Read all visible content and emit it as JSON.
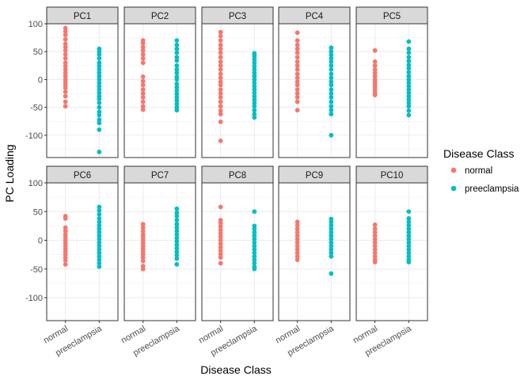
{
  "chart_data": {
    "type": "scatter",
    "xlabel": "Disease Class",
    "ylabel": "PC Loading",
    "categories": [
      "normal",
      "preeclampsia"
    ],
    "ylim": [
      -140,
      100
    ],
    "yticks": [
      100,
      50,
      0,
      -50,
      -100
    ],
    "grid": true,
    "legend": {
      "title": "Disease Class",
      "position": "right",
      "entries": [
        {
          "label": "normal",
          "color": "#F8766D"
        },
        {
          "label": "preeclampsia",
          "color": "#00BFC4"
        }
      ]
    },
    "panels": [
      {
        "label": "PC1",
        "normal": [
          92,
          86,
          80,
          72,
          64,
          58,
          52,
          45,
          38,
          30,
          24,
          18,
          12,
          6,
          0,
          -5,
          -10,
          -15,
          -22,
          -30,
          -40,
          -48
        ],
        "preeclampsia": [
          55,
          50,
          45,
          38,
          30,
          24,
          18,
          12,
          6,
          0,
          -6,
          -12,
          -18,
          -24,
          -30,
          -35,
          -42,
          -50,
          -58,
          -64,
          -72,
          -78,
          -90,
          -130
        ]
      },
      {
        "label": "PC2",
        "normal": [
          70,
          65,
          58,
          52,
          45,
          38,
          30,
          5,
          -3,
          -10,
          -18,
          -25,
          -32,
          -40,
          -48,
          -54
        ],
        "preeclampsia": [
          70,
          62,
          55,
          48,
          40,
          34,
          25,
          18,
          12,
          5,
          0,
          -8,
          -14,
          -20,
          -26,
          -32,
          -38,
          -44,
          -50,
          -55
        ]
      },
      {
        "label": "PC3",
        "normal": [
          85,
          78,
          70,
          62,
          55,
          48,
          40,
          32,
          25,
          18,
          10,
          3,
          -4,
          -10,
          -18,
          -25,
          -32,
          -40,
          -48,
          -56,
          -62,
          -76,
          -110
        ],
        "preeclampsia": [
          47,
          42,
          36,
          30,
          24,
          18,
          12,
          6,
          0,
          -6,
          -12,
          -18,
          -24,
          -30,
          -36,
          -42,
          -48,
          -55,
          -62,
          -68
        ]
      },
      {
        "label": "PC4",
        "normal": [
          84,
          70,
          62,
          55,
          48,
          40,
          32,
          25,
          18,
          10,
          3,
          -4,
          -10,
          -18,
          -25,
          -32,
          -40,
          -55
        ],
        "preeclampsia": [
          57,
          50,
          44,
          38,
          32,
          25,
          18,
          10,
          3,
          -4,
          -10,
          -18,
          -25,
          -32,
          -40,
          -48,
          -55,
          -62,
          -100
        ]
      },
      {
        "label": "PC5",
        "normal": [
          52,
          32,
          25,
          18,
          12,
          6,
          0,
          -5,
          -10,
          -15,
          -20,
          -25,
          -28
        ],
        "preeclampsia": [
          68,
          55,
          48,
          40,
          33,
          26,
          20,
          13,
          6,
          0,
          -6,
          -12,
          -18,
          -24,
          -30,
          -36,
          -42,
          -48,
          -56,
          -64
        ]
      },
      {
        "label": "PC6",
        "normal": [
          42,
          38,
          22,
          16,
          10,
          5,
          0,
          -5,
          -10,
          -15,
          -20,
          -25,
          -30,
          -35,
          -42
        ],
        "preeclampsia": [
          58,
          52,
          45,
          38,
          32,
          26,
          20,
          14,
          8,
          2,
          -4,
          -10,
          -16,
          -22,
          -28,
          -34,
          -40,
          -46
        ]
      },
      {
        "label": "PC7",
        "normal": [
          28,
          22,
          16,
          10,
          5,
          0,
          -5,
          -10,
          -15,
          -20,
          -25,
          -30,
          -36,
          -45,
          -50
        ],
        "preeclampsia": [
          55,
          48,
          42,
          35,
          28,
          22,
          16,
          10,
          4,
          -2,
          -8,
          -14,
          -20,
          -26,
          -32,
          -42
        ]
      },
      {
        "label": "PC8",
        "normal": [
          58,
          35,
          30,
          24,
          18,
          12,
          6,
          0,
          -6,
          -12,
          -18,
          -24,
          -30,
          -40
        ],
        "preeclampsia": [
          50,
          25,
          20,
          14,
          8,
          2,
          -4,
          -10,
          -16,
          -22,
          -28,
          -34,
          -40,
          -46,
          -50
        ]
      },
      {
        "label": "PC9",
        "normal": [
          32,
          26,
          20,
          14,
          8,
          2,
          -4,
          -10,
          -16,
          -22,
          -28,
          -34
        ],
        "preeclampsia": [
          37,
          32,
          26,
          20,
          14,
          8,
          2,
          -4,
          -10,
          -16,
          -22,
          -28,
          -58
        ]
      },
      {
        "label": "PC10",
        "normal": [
          27,
          20,
          14,
          8,
          2,
          -4,
          -10,
          -16,
          -22,
          -28,
          -34,
          -38
        ],
        "preeclampsia": [
          50,
          38,
          32,
          26,
          20,
          14,
          8,
          2,
          -4,
          -10,
          -16,
          -22,
          -28,
          -34,
          -38
        ]
      }
    ]
  }
}
